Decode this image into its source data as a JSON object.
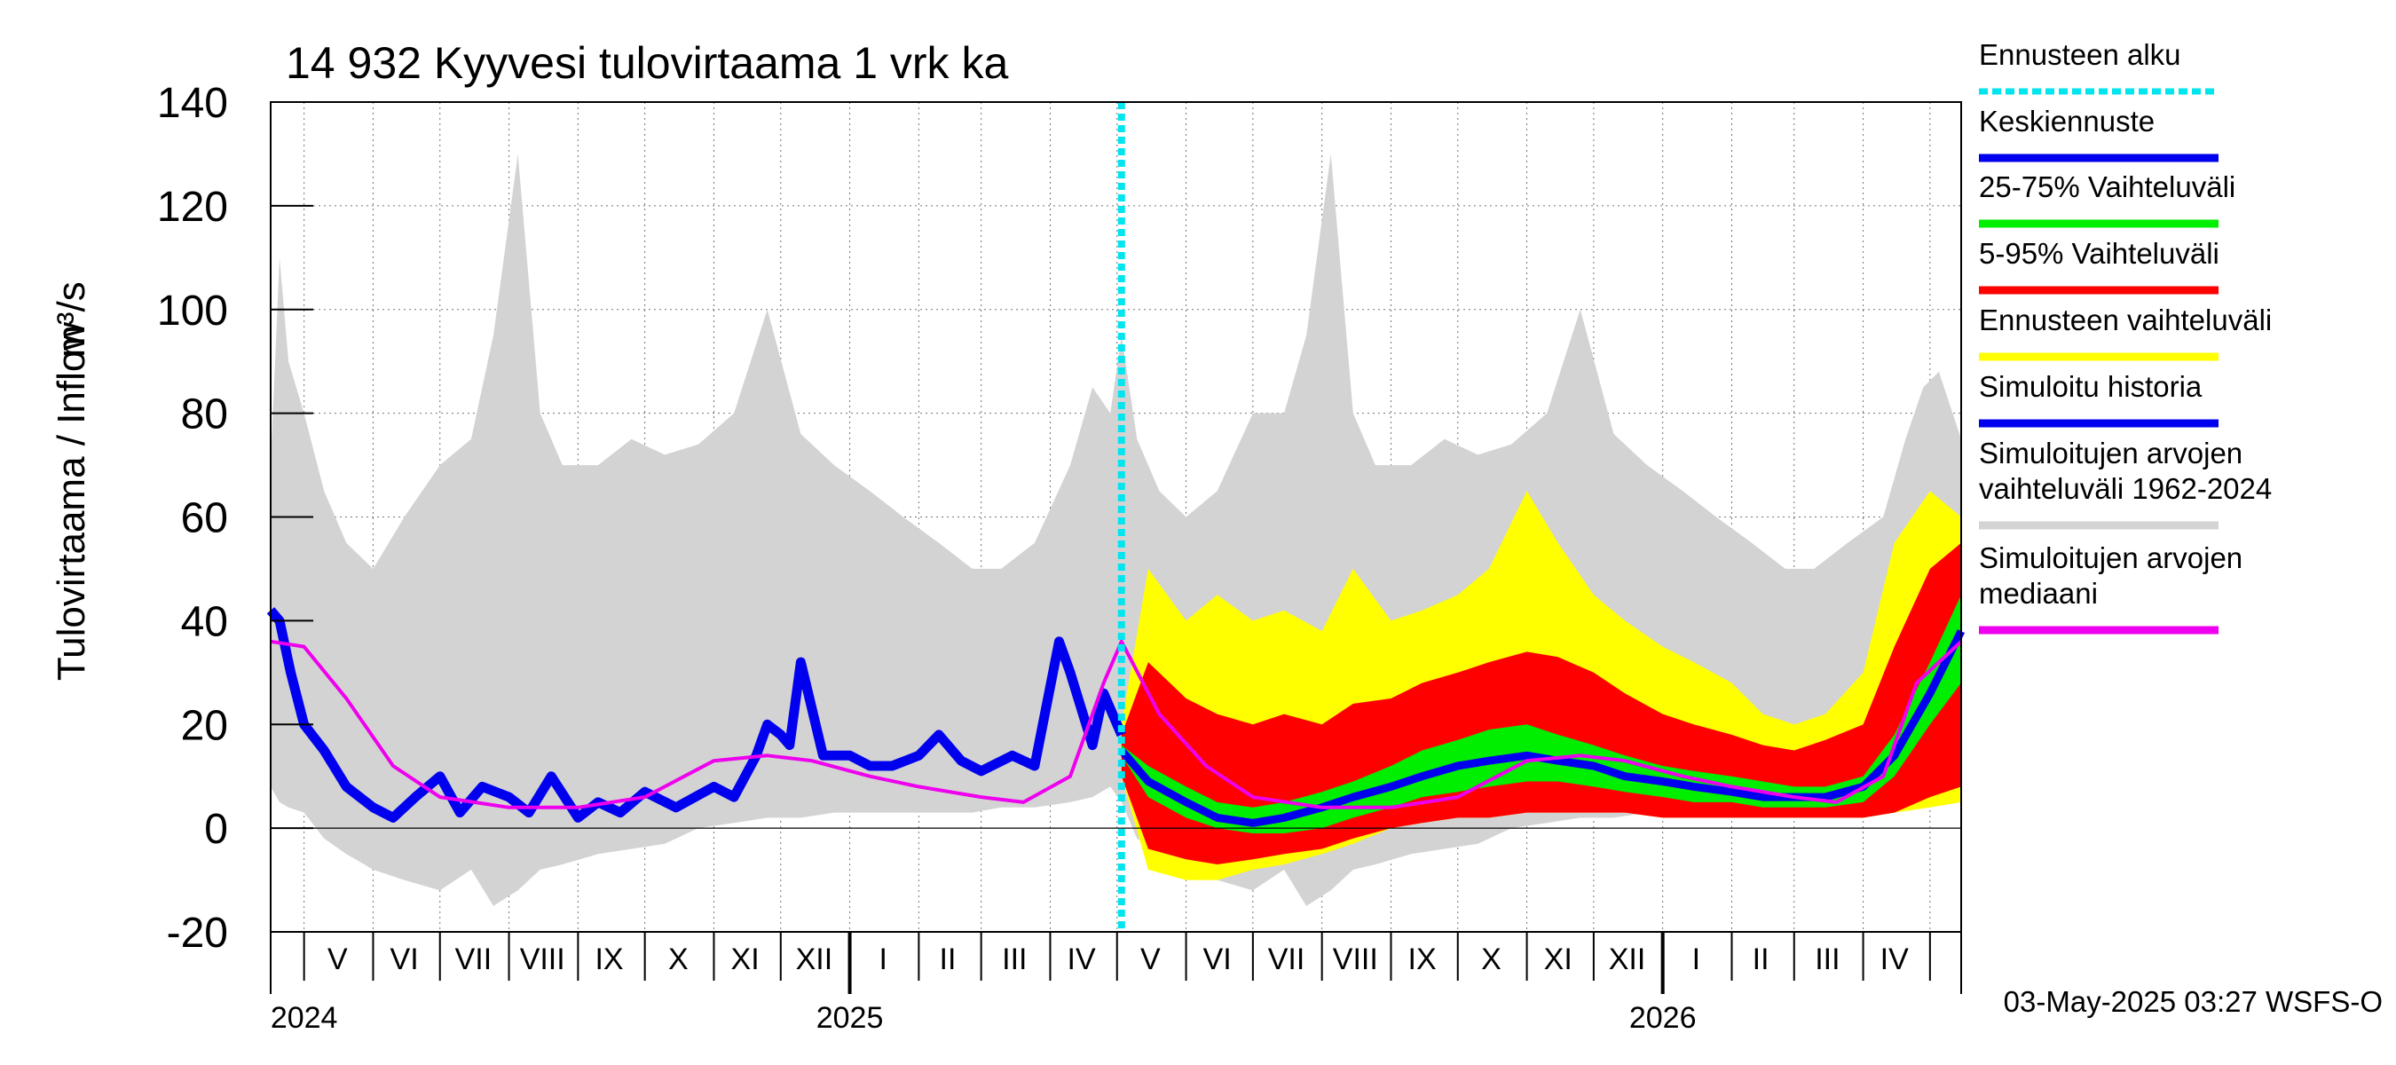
{
  "chart_data": {
    "type": "area",
    "title": "14 932 Kyyvesi tulovirtaama 1 vrk ka",
    "ylabel": "Tulovirtaama / Inflow",
    "yunit": "m³/s",
    "ylim": [
      -20,
      140
    ],
    "yticks": [
      -20,
      0,
      20,
      40,
      60,
      80,
      100,
      120,
      140
    ],
    "xlim": [
      "2024-04-16",
      "2026-05-15"
    ],
    "grid": true,
    "legend_position": "right",
    "forecast_start": "2025-05-03",
    "month_labels": [
      {
        "date": "2024-05-16",
        "label": "V"
      },
      {
        "date": "2024-06-15",
        "label": "VI"
      },
      {
        "date": "2024-07-16",
        "label": "VII"
      },
      {
        "date": "2024-08-16",
        "label": "VIII"
      },
      {
        "date": "2024-09-15",
        "label": "IX"
      },
      {
        "date": "2024-10-16",
        "label": "X"
      },
      {
        "date": "2024-11-15",
        "label": "XI"
      },
      {
        "date": "2024-12-16",
        "label": "XII"
      },
      {
        "date": "2025-01-16",
        "label": "I"
      },
      {
        "date": "2025-02-14",
        "label": "II"
      },
      {
        "date": "2025-03-16",
        "label": "III"
      },
      {
        "date": "2025-04-15",
        "label": "IV"
      },
      {
        "date": "2025-05-16",
        "label": "V"
      },
      {
        "date": "2025-06-15",
        "label": "VI"
      },
      {
        "date": "2025-07-16",
        "label": "VII"
      },
      {
        "date": "2025-08-16",
        "label": "VIII"
      },
      {
        "date": "2025-09-15",
        "label": "IX"
      },
      {
        "date": "2025-10-16",
        "label": "X"
      },
      {
        "date": "2025-11-15",
        "label": "XI"
      },
      {
        "date": "2025-12-16",
        "label": "XII"
      },
      {
        "date": "2026-01-16",
        "label": "I"
      },
      {
        "date": "2026-02-14",
        "label": "II"
      },
      {
        "date": "2026-03-16",
        "label": "III"
      },
      {
        "date": "2026-04-15",
        "label": "IV"
      }
    ],
    "year_labels": [
      {
        "date": "2024-05-01",
        "label": "2024"
      },
      {
        "date": "2025-01-01",
        "label": "2025"
      },
      {
        "date": "2026-01-01",
        "label": "2026"
      }
    ],
    "legend": [
      {
        "label": "Ennusteen alku",
        "color": "#00e5ee",
        "style": "dotted"
      },
      {
        "label": "Keskiennuste",
        "color": "#0000ee",
        "style": "solid"
      },
      {
        "label": "25-75% Vaihteluväli",
        "color": "#00ee00",
        "style": "solid"
      },
      {
        "label": "5-95% Vaihteluväli",
        "color": "#ff0000",
        "style": "solid"
      },
      {
        "label": "Ennusteen vaihteluväli",
        "color": "#ffff00",
        "style": "solid"
      },
      {
        "label": "Simuloitu historia",
        "color": "#0000ee",
        "style": "solid"
      },
      {
        "label": "Simuloitujen arvojen\nvaihteluväli 1962-2024",
        "color": "#d3d3d3",
        "style": "solid"
      },
      {
        "label": "Simuloitujen arvojen\nmediaani",
        "color": "#ee00ee",
        "style": "solid"
      }
    ],
    "series": {
      "historical_range": {
        "color": "#d3d3d3",
        "x": [
          "2024-04-16",
          "2024-04-20",
          "2024-04-24",
          "2024-05-01",
          "2024-05-10",
          "2024-05-20",
          "2024-06-01",
          "2024-06-15",
          "2024-07-01",
          "2024-07-15",
          "2024-07-25",
          "2024-08-05",
          "2024-08-15",
          "2024-08-25",
          "2024-09-10",
          "2024-09-25",
          "2024-10-10",
          "2024-10-25",
          "2024-11-10",
          "2024-11-25",
          "2024-12-10",
          "2024-12-25",
          "2025-01-10",
          "2025-01-25",
          "2025-02-10",
          "2025-02-25",
          "2025-03-10",
          "2025-03-25",
          "2025-04-10",
          "2025-04-20",
          "2025-04-28",
          "2025-05-03",
          "2025-05-10",
          "2025-05-20",
          "2025-06-01",
          "2025-06-15",
          "2025-07-01",
          "2025-07-15",
          "2025-07-25",
          "2025-08-05",
          "2025-08-15",
          "2025-08-25",
          "2025-09-10",
          "2025-09-25",
          "2025-10-10",
          "2025-10-25",
          "2025-11-10",
          "2025-11-25",
          "2025-12-10",
          "2025-12-25",
          "2026-01-10",
          "2026-01-25",
          "2026-02-10",
          "2026-02-25",
          "2026-03-10",
          "2026-03-25",
          "2026-04-10",
          "2026-04-20",
          "2026-04-28",
          "2026-05-05",
          "2026-05-15"
        ],
        "upper": [
          70,
          110,
          90,
          80,
          65,
          55,
          50,
          60,
          70,
          75,
          95,
          130,
          80,
          70,
          70,
          75,
          72,
          74,
          80,
          100,
          76,
          70,
          65,
          60,
          55,
          50,
          50,
          55,
          70,
          85,
          80,
          95,
          75,
          65,
          60,
          65,
          80,
          80,
          95,
          130,
          80,
          70,
          70,
          75,
          72,
          74,
          80,
          100,
          76,
          70,
          65,
          60,
          55,
          50,
          50,
          55,
          60,
          75,
          85,
          88,
          75
        ],
        "lower": [
          8,
          5,
          4,
          3,
          -2,
          -5,
          -8,
          -10,
          -12,
          -8,
          -15,
          -12,
          -8,
          -7,
          -5,
          -4,
          -3,
          0,
          1,
          2,
          2,
          3,
          3,
          3,
          3,
          3,
          4,
          4,
          5,
          6,
          8,
          5,
          -2,
          -5,
          -8,
          -10,
          -12,
          -8,
          -15,
          -12,
          -8,
          -7,
          -5,
          -4,
          -3,
          0,
          1,
          2,
          2,
          3,
          3,
          3,
          3,
          3,
          4,
          4,
          5,
          6,
          6,
          5,
          5
        ]
      },
      "historical_median": {
        "color": "#ee00ee",
        "x": [
          "2024-04-16",
          "2024-05-01",
          "2024-05-20",
          "2024-06-10",
          "2024-07-01",
          "2024-08-01",
          "2024-09-01",
          "2024-10-01",
          "2024-11-01",
          "2024-11-25",
          "2024-12-15",
          "2025-01-10",
          "2025-02-01",
          "2025-03-01",
          "2025-03-20",
          "2025-04-10",
          "2025-04-25",
          "2025-05-03",
          "2025-05-20",
          "2025-06-10",
          "2025-07-01",
          "2025-08-01",
          "2025-09-01",
          "2025-10-01",
          "2025-11-01",
          "2025-11-25",
          "2025-12-15",
          "2026-01-10",
          "2026-02-01",
          "2026-03-01",
          "2026-03-20",
          "2026-04-10",
          "2026-04-25",
          "2026-05-15"
        ],
        "values": [
          36,
          35,
          25,
          12,
          6,
          4,
          4,
          6,
          13,
          14,
          13,
          10,
          8,
          6,
          5,
          10,
          28,
          36,
          22,
          12,
          6,
          4,
          4,
          6,
          13,
          14,
          13,
          10,
          8,
          6,
          5,
          10,
          28,
          36
        ]
      },
      "simulated_history": {
        "color": "#0000ee",
        "x": [
          "2024-04-16",
          "2024-04-20",
          "2024-04-25",
          "2024-05-01",
          "2024-05-10",
          "2024-05-20",
          "2024-06-01",
          "2024-06-10",
          "2024-06-20",
          "2024-07-01",
          "2024-07-10",
          "2024-07-20",
          "2024-08-01",
          "2024-08-10",
          "2024-08-20",
          "2024-09-01",
          "2024-09-10",
          "2024-09-20",
          "2024-10-01",
          "2024-10-15",
          "2024-11-01",
          "2024-11-10",
          "2024-11-20",
          "2024-11-25",
          "2024-12-01",
          "2024-12-05",
          "2024-12-10",
          "2024-12-20",
          "2025-01-01",
          "2025-01-10",
          "2025-01-20",
          "2025-02-01",
          "2025-02-10",
          "2025-02-20",
          "2025-03-01",
          "2025-03-15",
          "2025-03-25",
          "2025-04-05",
          "2025-04-10",
          "2025-04-20",
          "2025-04-25",
          "2025-05-03"
        ],
        "values": [
          42,
          40,
          30,
          20,
          15,
          8,
          4,
          2,
          6,
          10,
          3,
          8,
          6,
          3,
          10,
          2,
          5,
          3,
          7,
          4,
          8,
          6,
          14,
          20,
          18,
          16,
          32,
          14,
          14,
          12,
          12,
          14,
          18,
          13,
          11,
          14,
          12,
          36,
          30,
          16,
          26,
          18
        ]
      },
      "forecast_range": {
        "color": "#ffff00",
        "x": [
          "2025-05-03",
          "2025-05-15",
          "2025-06-01",
          "2025-06-15",
          "2025-07-01",
          "2025-07-15",
          "2025-08-01",
          "2025-08-15",
          "2025-09-01",
          "2025-09-15",
          "2025-10-01",
          "2025-10-15",
          "2025-11-01",
          "2025-11-15",
          "2025-12-01",
          "2025-12-15",
          "2026-01-01",
          "2026-01-15",
          "2026-02-01",
          "2026-02-15",
          "2026-03-01",
          "2026-03-15",
          "2026-04-01",
          "2026-04-15",
          "2026-05-01",
          "2026-05-15"
        ],
        "upper": [
          20,
          50,
          40,
          45,
          40,
          42,
          38,
          50,
          40,
          42,
          45,
          50,
          65,
          55,
          45,
          40,
          35,
          32,
          28,
          22,
          20,
          22,
          30,
          55,
          65,
          60
        ],
        "lower": [
          10,
          -8,
          -10,
          -10,
          -8,
          -7,
          -5,
          -3,
          0,
          1,
          2,
          2,
          3,
          3,
          3,
          3,
          2,
          2,
          2,
          2,
          2,
          2,
          2,
          3,
          4,
          5
        ]
      },
      "p5_95": {
        "color": "#ff0000",
        "x": [
          "2025-05-03",
          "2025-05-15",
          "2025-06-01",
          "2025-06-15",
          "2025-07-01",
          "2025-07-15",
          "2025-08-01",
          "2025-08-15",
          "2025-09-01",
          "2025-09-15",
          "2025-10-01",
          "2025-10-15",
          "2025-11-01",
          "2025-11-15",
          "2025-12-01",
          "2025-12-15",
          "2026-01-01",
          "2026-01-15",
          "2026-02-01",
          "2026-02-15",
          "2026-03-01",
          "2026-03-15",
          "2026-04-01",
          "2026-04-15",
          "2026-05-01",
          "2026-05-15"
        ],
        "upper": [
          18,
          32,
          25,
          22,
          20,
          22,
          20,
          24,
          25,
          28,
          30,
          32,
          34,
          33,
          30,
          26,
          22,
          20,
          18,
          16,
          15,
          17,
          20,
          35,
          50,
          55
        ],
        "lower": [
          10,
          -4,
          -6,
          -7,
          -6,
          -5,
          -4,
          -2,
          0,
          1,
          2,
          2,
          3,
          3,
          3,
          3,
          2,
          2,
          2,
          2,
          2,
          2,
          2,
          3,
          6,
          8
        ]
      },
      "p25_75": {
        "color": "#00ee00",
        "x": [
          "2025-05-03",
          "2025-05-15",
          "2025-06-01",
          "2025-06-15",
          "2025-07-01",
          "2025-07-15",
          "2025-08-01",
          "2025-08-15",
          "2025-09-01",
          "2025-09-15",
          "2025-10-01",
          "2025-10-15",
          "2025-11-01",
          "2025-11-15",
          "2025-12-01",
          "2025-12-15",
          "2026-01-01",
          "2026-01-15",
          "2026-02-01",
          "2026-02-15",
          "2026-03-01",
          "2026-03-15",
          "2026-04-01",
          "2026-04-15",
          "2026-05-01",
          "2026-05-15"
        ],
        "upper": [
          16,
          12,
          8,
          5,
          4,
          5,
          7,
          9,
          12,
          15,
          17,
          19,
          20,
          18,
          16,
          14,
          12,
          11,
          10,
          9,
          8,
          8,
          10,
          18,
          32,
          45
        ],
        "lower": [
          14,
          6,
          2,
          0,
          -1,
          -1,
          0,
          2,
          4,
          6,
          7,
          8,
          9,
          9,
          8,
          7,
          6,
          5,
          5,
          4,
          4,
          4,
          5,
          10,
          20,
          28
        ]
      },
      "forecast_median": {
        "color": "#0000ee",
        "x": [
          "2025-05-03",
          "2025-05-15",
          "2025-06-01",
          "2025-06-15",
          "2025-07-01",
          "2025-07-15",
          "2025-08-01",
          "2025-08-15",
          "2025-09-01",
          "2025-09-15",
          "2025-10-01",
          "2025-10-15",
          "2025-11-01",
          "2025-11-15",
          "2025-12-01",
          "2025-12-15",
          "2026-01-01",
          "2026-01-15",
          "2026-02-01",
          "2026-02-15",
          "2026-03-01",
          "2026-03-15",
          "2026-04-01",
          "2026-04-15",
          "2026-05-01",
          "2026-05-15"
        ],
        "values": [
          15,
          9,
          5,
          2,
          1,
          2,
          4,
          6,
          8,
          10,
          12,
          13,
          14,
          13,
          12,
          10,
          9,
          8,
          7,
          6,
          6,
          6,
          8,
          14,
          26,
          38
        ]
      }
    }
  },
  "footer": {
    "timestamp": "03-May-2025 03:27 WSFS-O"
  }
}
